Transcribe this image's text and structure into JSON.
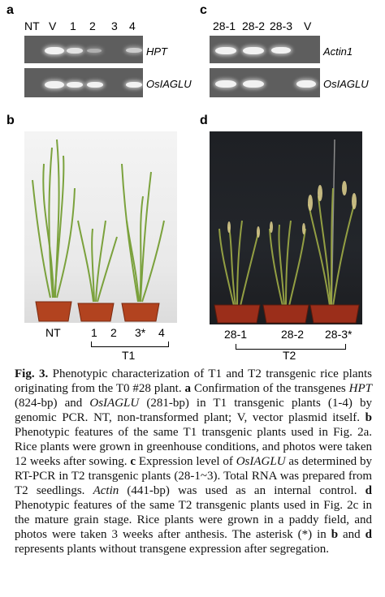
{
  "panels": {
    "a": {
      "label": "a",
      "lanes": [
        "NT",
        "V",
        "1",
        "2",
        "3",
        "4"
      ],
      "genes": [
        "HPT",
        "OsIAGLU"
      ]
    },
    "b": {
      "label": "b",
      "plant_labels": [
        "NT",
        "1",
        "2",
        "3*",
        "4"
      ],
      "group_label": "T1"
    },
    "c": {
      "label": "c",
      "lanes": [
        "28-1",
        "28-2",
        "28-3",
        "V"
      ],
      "genes": [
        "Actin1",
        "OsIAGLU"
      ]
    },
    "d": {
      "label": "d",
      "plant_labels": [
        "28-1",
        "28-2",
        "28-3*"
      ],
      "group_label": "T2"
    }
  },
  "caption": {
    "fig": "Fig. 3.",
    "s1": " Phenotypic characterization of T1 and T2 transgenic rice plants originating from the T0 #28 plant. ",
    "a": "a",
    "s2": " Confirmation of the transgenes ",
    "hpt": "HPT",
    "s3": " (824-bp) and ",
    "gene1": "OsIAGLU",
    "s4": " (281-bp) in T1 transgenic plants (1-4) by genomic PCR. NT, non-transformed plant; V, vector plasmid itself. ",
    "b": "b",
    "s5": " Phenotypic features of the same T1 transgenic plants used in Fig. 2a. Rice plants were grown in greenhouse conditions, and photos were taken 12 weeks after sowing. ",
    "c": "c",
    "s6": " Expression level of ",
    "gene2": "OsIAGLU",
    "s7": " as determined by RT-PCR in T2 transgenic plants (28-1~3). Total RNA was prepared from T2 seedlings. ",
    "actin": "Actin",
    "s8": " (441-bp) was used as an internal control. ",
    "d": "d",
    "s9": " Phenotypic features of the same T2 transgenic plants used in Fig. 2c in the mature grain stage. Rice plants were grown in a paddy field, and photos were taken 3 weeks after anthesis. The asterisk (*) in ",
    "b2": "b",
    "s10": " and ",
    "d2": "d",
    "s11": " represents plants without transgene expression after segregation."
  }
}
